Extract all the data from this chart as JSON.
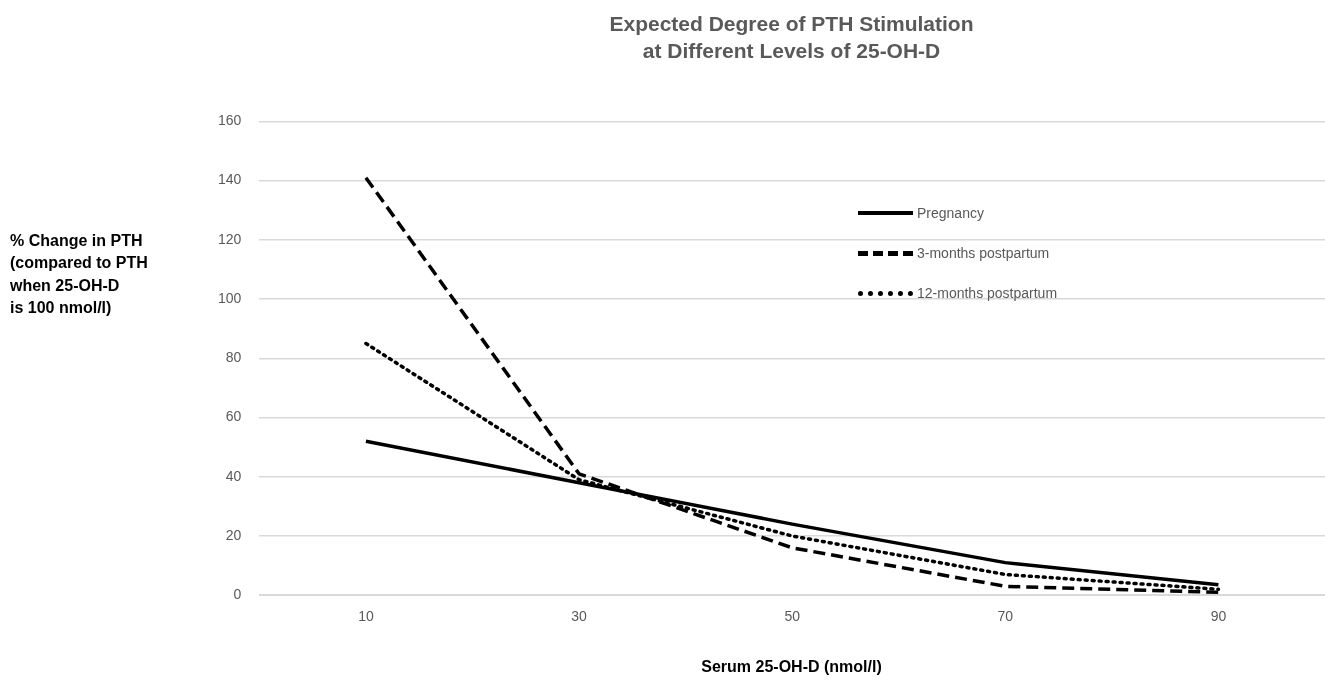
{
  "chart_data": {
    "type": "line",
    "title": "Expected Degree of PTH Stimulation\nat Different Levels of 25-OH-D",
    "xlabel": "Serum 25-OH-D (nmol/l)",
    "ylabel": "% Change in PTH\n(compared to PTH\nwhen 25-OH-D\nis 100 nmol/l)",
    "categories": [
      "10",
      "30",
      "50",
      "70",
      "90"
    ],
    "series": [
      {
        "name": "Pregnancy",
        "color": "#000000",
        "line_style": "solid",
        "values": [
          52,
          38,
          24,
          11,
          3.5
        ]
      },
      {
        "name": "3-months postpartum",
        "color": "#000000",
        "line_style": "dashed",
        "values": [
          141,
          41,
          16,
          3,
          1
        ]
      },
      {
        "name": "12-months postpartum",
        "color": "#000000",
        "line_style": "dotted",
        "values": [
          85,
          39,
          20,
          7,
          2
        ]
      }
    ],
    "ylim": [
      0,
      160
    ],
    "yticks": [
      0,
      20,
      40,
      60,
      80,
      100,
      120,
      140,
      160
    ],
    "grid": "y",
    "legend": "right",
    "marker": "none"
  }
}
